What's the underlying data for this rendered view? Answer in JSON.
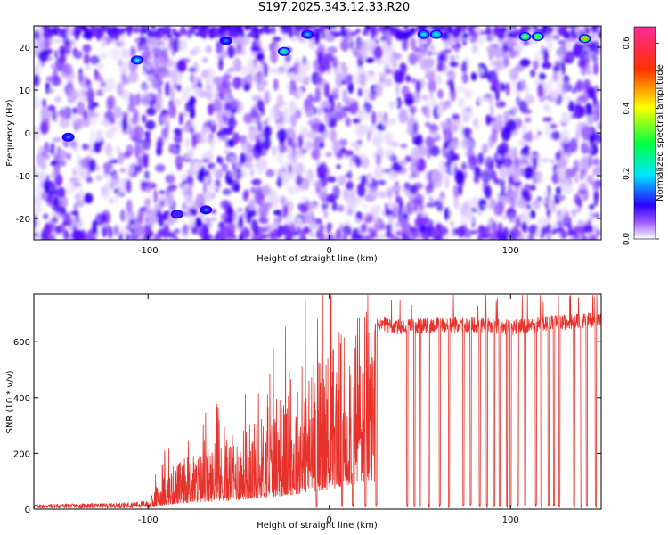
{
  "title": "S197.2025.343.12.33.R20",
  "chart_data": [
    {
      "type": "heatmap",
      "title": "S197.2025.343.12.33.R20",
      "xlabel": "Height of straight line (km)",
      "ylabel": "Frequency (Hz)",
      "xlim": [
        -163,
        150
      ],
      "ylim": [
        -25,
        25
      ],
      "x_ticks": [
        -100,
        0,
        100
      ],
      "x_tick_labels": [
        "-100",
        "0",
        "100"
      ],
      "y_ticks": [
        -20,
        -10,
        0,
        10,
        20
      ],
      "y_tick_labels": [
        "-20",
        "-10",
        "0",
        "10",
        "20"
      ],
      "colorbar": {
        "label": "Normalized spectral amplitude",
        "range": [
          0,
          0.65
        ],
        "ticks": [
          0.0,
          0.2,
          0.4,
          0.6
        ],
        "tick_labels": [
          "0.0",
          "0.2",
          "0.4",
          "0.6"
        ],
        "colors": [
          "#ffffff",
          "#9b59ff",
          "#2a00ff",
          "#00e5ff",
          "#00ff40",
          "#ffff00",
          "#ff3000",
          "#ff2a9a"
        ]
      },
      "dominant_color": "#6a1cff",
      "hotspots": [
        {
          "x": -106,
          "y": 17,
          "value": 0.2
        },
        {
          "x": -144,
          "y": -1,
          "value": 0.15
        },
        {
          "x": -57,
          "y": 21.5,
          "value": 0.15
        },
        {
          "x": -25,
          "y": 19,
          "value": 0.25
        },
        {
          "x": -12,
          "y": 23,
          "value": 0.18
        },
        {
          "x": 52,
          "y": 23,
          "value": 0.22
        },
        {
          "x": 59,
          "y": 23,
          "value": 0.25
        },
        {
          "x": 108,
          "y": 22.5,
          "value": 0.35
        },
        {
          "x": 115,
          "y": 22.5,
          "value": 0.35
        },
        {
          "x": 141,
          "y": 22,
          "value": 0.45
        },
        {
          "x": -68,
          "y": -18,
          "value": 0.15
        },
        {
          "x": -84,
          "y": -19,
          "value": 0.12
        }
      ],
      "grid": false
    },
    {
      "type": "line",
      "xlabel": "Height of straight line (km)",
      "ylabel": "SNR (10 * v/v)",
      "xlim": [
        -163,
        150
      ],
      "ylim": [
        0,
        770
      ],
      "x_ticks": [
        -100,
        0,
        100
      ],
      "x_tick_labels": [
        "-100",
        "0",
        "100"
      ],
      "y_ticks": [
        0,
        200,
        400,
        600
      ],
      "y_tick_labels": [
        "0",
        "200",
        "400",
        "600"
      ],
      "color": "#e8312b",
      "grid": false,
      "envelope_x": [
        -163,
        -120,
        -100,
        -90,
        -80,
        -60,
        -40,
        -30,
        -20,
        -10,
        0,
        10,
        20,
        30,
        40,
        60,
        80,
        100,
        120,
        150
      ],
      "envelope_y": [
        15,
        18,
        25,
        110,
        150,
        190,
        260,
        300,
        340,
        420,
        470,
        570,
        650,
        660,
        650,
        660,
        660,
        650,
        665,
        680
      ],
      "drop_x": [
        -7,
        7,
        13,
        20,
        26,
        43,
        47,
        50,
        55,
        61,
        66,
        74,
        78,
        83,
        87,
        91,
        94,
        98,
        100,
        104,
        108,
        114,
        117,
        121,
        124,
        127,
        135,
        139,
        142,
        147
      ]
    }
  ]
}
